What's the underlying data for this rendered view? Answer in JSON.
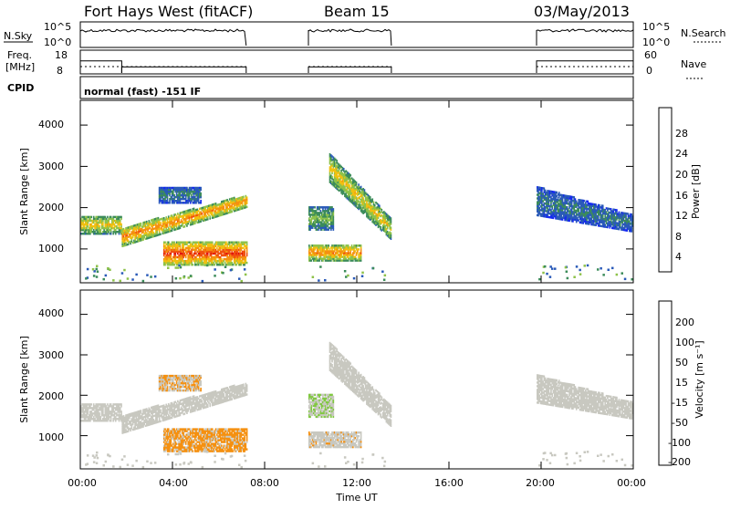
{
  "header": {
    "radar": "Fort Hays West (fitACF)",
    "beam": "Beam 15",
    "date": "03/May/2013"
  },
  "nsky_panel": {
    "left_label": "N.Sky",
    "right_label": "N.Search",
    "left_ticks": [
      "10^5",
      "10^0"
    ],
    "right_ticks": [
      "10^5",
      "10^0"
    ],
    "intervals": [
      [
        0.0,
        7.2
      ],
      [
        9.9,
        13.5
      ],
      [
        19.8,
        24.0
      ]
    ]
  },
  "freq_panel": {
    "left_label_1": "Freq.",
    "left_label_2": "[MHz]",
    "right_label": "Nave",
    "left_ticks": [
      "18",
      "8"
    ],
    "right_ticks": [
      "60",
      "0"
    ],
    "freq_step_hours": [
      [
        0.0,
        1.8,
        14.0
      ],
      [
        1.8,
        7.2,
        11.0
      ],
      [
        9.9,
        13.5,
        11.0
      ],
      [
        19.8,
        24.0,
        14.0
      ]
    ]
  },
  "cpid": {
    "label": "CPID",
    "text": "normal (fast) -151 IF"
  },
  "power_panel": {
    "ylabel": "Slant Range [km]",
    "yticks": [
      "4000",
      "3000",
      "2000",
      "1000"
    ],
    "colorbar_label": "Power [dB]",
    "colorbar_ticks": [
      "28",
      "24",
      "20",
      "16",
      "12",
      "8",
      "4"
    ]
  },
  "velocity_panel": {
    "ylabel": "Slant Range [km]",
    "yticks": [
      "4000",
      "3000",
      "2000",
      "1000"
    ],
    "colorbar_label": "Velocity [m s⁻¹]",
    "colorbar_ticks": [
      "200",
      "100",
      "50",
      "15",
      "-15",
      "-50",
      "-100",
      "-200"
    ]
  },
  "x_axis": {
    "label": "Time UT",
    "ticks": [
      "00:00",
      "04:00",
      "08:00",
      "12:00",
      "16:00",
      "20:00",
      "00:00"
    ]
  },
  "chart_data": {
    "type": "heatmap",
    "x_range_hours": [
      0,
      24
    ],
    "y_range_km": [
      180,
      4600
    ],
    "power_scale_db": [
      0,
      32
    ],
    "velocity_scale_ms": [
      -250,
      250
    ],
    "power_colors": [
      "#1428f0",
      "#2a5ab8",
      "#3c8c5a",
      "#8ec24a",
      "#f0c010",
      "#f59010",
      "#f05010",
      "#e01010"
    ],
    "velocity_colors": [
      "#e01010",
      "#f05010",
      "#f59010",
      "#c8c8c0",
      "#c8c8c0",
      "#80c840",
      "#2a8a5a",
      "#1e4aa0"
    ],
    "echo_regions": [
      {
        "name": "band_1500_early",
        "t": [
          0.0,
          1.8
        ],
        "r": [
          1350,
          1800
        ],
        "power": 16,
        "velocity": 0
      },
      {
        "name": "rising_band",
        "t": [
          1.8,
          7.2
        ],
        "r_start": [
          1050,
          1500
        ],
        "r_end": [
          2000,
          2300
        ],
        "power": 20,
        "velocity": 0
      },
      {
        "name": "patch_2300",
        "t": [
          3.4,
          5.2
        ],
        "r": [
          2100,
          2500
        ],
        "power": 8,
        "velocity": -60
      },
      {
        "name": "band_900",
        "t": [
          3.6,
          7.2
        ],
        "r": [
          600,
          1150
        ],
        "power": 24,
        "velocity": -70
      },
      {
        "name": "patch_1700_noon",
        "t": [
          9.9,
          11.0
        ],
        "r": [
          1450,
          2000
        ],
        "power": 12,
        "velocity": 60
      },
      {
        "name": "streak_noon",
        "t": [
          10.8,
          13.5
        ],
        "r_start": [
          2600,
          3300
        ],
        "r_end": [
          1200,
          1700
        ],
        "power": 16,
        "velocity": 30
      },
      {
        "name": "patch_900_noon",
        "t": [
          9.9,
          12.2
        ],
        "r": [
          700,
          1100
        ],
        "power": 20,
        "velocity": -50
      },
      {
        "name": "evening_band",
        "t": [
          19.8,
          24.0
        ],
        "r_start": [
          1800,
          2500
        ],
        "r_end": [
          1400,
          1800
        ],
        "power": 8,
        "velocity": 0
      }
    ]
  }
}
